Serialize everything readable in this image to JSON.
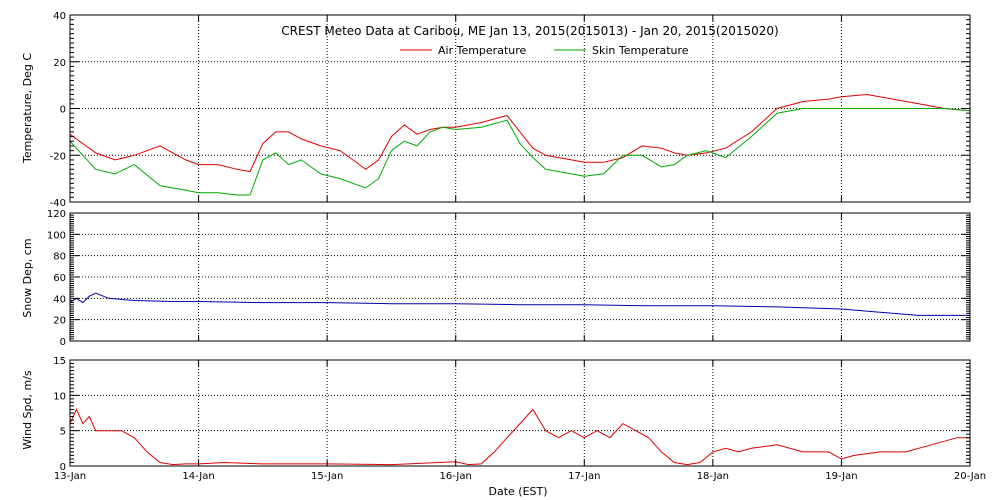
{
  "colors": {
    "air": "#dd0000",
    "skin": "#00aa00",
    "snow": "#0000aa",
    "wind": "#dd0000",
    "axis": "#000000",
    "grid": "#000000"
  },
  "chart_data": [
    {
      "type": "line",
      "title": "CREST Meteo Data at Caribou, ME   Jan 13, 2015(2015013) - Jan 20, 2015(2015020)",
      "xlabel": "",
      "ylabel": "Temperature, Deg C",
      "xlim": [
        0,
        7
      ],
      "ylim": [
        -40,
        40
      ],
      "yticks": [
        -40,
        -20,
        0,
        20,
        40
      ],
      "grid": true,
      "legend": "top-center",
      "x": [
        0,
        0.1,
        0.2,
        0.35,
        0.5,
        0.7,
        0.9,
        1.0,
        1.15,
        1.3,
        1.4,
        1.5,
        1.6,
        1.7,
        1.8,
        1.95,
        2.1,
        2.2,
        2.3,
        2.4,
        2.5,
        2.6,
        2.7,
        2.8,
        2.9,
        3.0,
        3.2,
        3.4,
        3.5,
        3.6,
        3.7,
        3.8,
        3.9,
        4.0,
        4.15,
        4.3,
        4.45,
        4.6,
        4.7,
        4.8,
        4.95,
        5.1,
        5.3,
        5.5,
        5.7,
        5.9,
        6.0,
        6.2,
        6.4,
        6.6,
        6.8,
        7.0
      ],
      "series": [
        {
          "name": "Air Temperature",
          "color_key": "air",
          "values": [
            -11,
            -15,
            -19,
            -22,
            -20,
            -16,
            -22,
            -24,
            -24,
            -26,
            -27,
            -15,
            -10,
            -10,
            -13,
            -16,
            -18,
            -22,
            -26,
            -22,
            -12,
            -7,
            -11,
            -9,
            -8,
            -8,
            -6,
            -3,
            -10,
            -17,
            -20,
            -21,
            -22,
            -23,
            -23,
            -21,
            -16,
            -17,
            -19,
            -20,
            -19,
            -17,
            -10,
            0,
            3,
            4,
            5,
            6,
            4,
            2,
            0,
            -1
          ]
        },
        {
          "name": "Skin Temperature",
          "color_key": "skin",
          "values": [
            -14,
            -20,
            -26,
            -28,
            -24,
            -33,
            -35,
            -36,
            -36,
            -37,
            -37,
            -22,
            -19,
            -24,
            -22,
            -28,
            -30,
            -32,
            -34,
            -30,
            -18,
            -14,
            -16,
            -10,
            -8,
            -9,
            -8,
            -5,
            -15,
            -21,
            -26,
            -27,
            -28,
            -29,
            -28,
            -20,
            -20,
            -25,
            -24,
            -20,
            -18,
            -21,
            -12,
            -2,
            0,
            0,
            0,
            0,
            0,
            0,
            0,
            -1
          ]
        }
      ]
    },
    {
      "type": "line",
      "title": "",
      "xlabel": "",
      "ylabel": "Snow Dep, cm",
      "xlim": [
        0,
        7
      ],
      "ylim": [
        0,
        120
      ],
      "yticks": [
        0,
        20,
        40,
        60,
        80,
        100,
        120
      ],
      "grid": true,
      "x": [
        0,
        0.05,
        0.1,
        0.15,
        0.2,
        0.3,
        0.5,
        0.8,
        1.0,
        1.5,
        2.0,
        2.5,
        3.0,
        3.5,
        4.0,
        4.5,
        5.0,
        5.5,
        6.0,
        6.3,
        6.6,
        7.0
      ],
      "series": [
        {
          "name": "",
          "color_key": "snow",
          "values": [
            36,
            40,
            36,
            42,
            45,
            40,
            38,
            37,
            37,
            36,
            36,
            35,
            35,
            34,
            34,
            33,
            33,
            32,
            30,
            27,
            24,
            24
          ]
        }
      ]
    },
    {
      "type": "line",
      "title": "",
      "xlabel": "Date (EST)",
      "ylabel": "Wind Spd, m/s",
      "xlim": [
        0,
        7
      ],
      "ylim": [
        0,
        15
      ],
      "yticks": [
        0,
        5,
        10,
        15
      ],
      "xticks": [
        "13-Jan",
        "14-Jan",
        "15-Jan",
        "16-Jan",
        "17-Jan",
        "18-Jan",
        "19-Jan",
        "20-Jan"
      ],
      "grid": true,
      "x": [
        0,
        0.05,
        0.1,
        0.15,
        0.2,
        0.3,
        0.4,
        0.5,
        0.6,
        0.7,
        0.8,
        0.9,
        1.0,
        1.2,
        1.5,
        2.0,
        2.5,
        3.0,
        3.1,
        3.2,
        3.3,
        3.4,
        3.5,
        3.6,
        3.7,
        3.8,
        3.9,
        4.0,
        4.1,
        4.2,
        4.3,
        4.4,
        4.5,
        4.6,
        4.7,
        4.8,
        4.9,
        5.0,
        5.1,
        5.2,
        5.3,
        5.5,
        5.7,
        5.9,
        6.0,
        6.1,
        6.3,
        6.5,
        6.7,
        6.9,
        7.0
      ],
      "series": [
        {
          "name": "",
          "color_key": "wind",
          "values": [
            6,
            8,
            6,
            7,
            5,
            5,
            5,
            4,
            2,
            0.5,
            0.2,
            0.3,
            0.3,
            0.5,
            0.3,
            0.3,
            0.2,
            0.6,
            0.2,
            0.3,
            2,
            4,
            6,
            8,
            5,
            4,
            5,
            4,
            5,
            4,
            6,
            5,
            4,
            2,
            0.5,
            0.2,
            0.5,
            2,
            2.5,
            2,
            2.5,
            3,
            2,
            2,
            1,
            1.5,
            2,
            2,
            3,
            4,
            4
          ]
        }
      ]
    }
  ]
}
